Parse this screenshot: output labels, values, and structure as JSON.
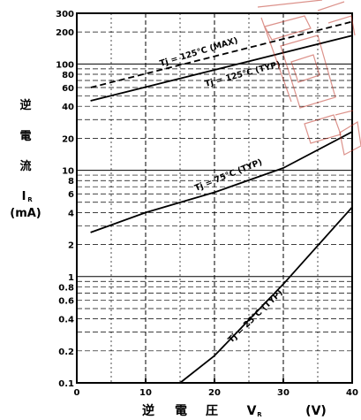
{
  "chart_data": {
    "type": "line",
    "x_scale": "linear",
    "y_scale": "log",
    "xlim": [
      0,
      40
    ],
    "ylim": [
      0.1,
      300
    ],
    "x_ticks": [
      "0",
      "10",
      "20",
      "30",
      "40"
    ],
    "y_ticks": [
      "300",
      "200",
      "100",
      "80",
      "60",
      "40",
      "20",
      "10",
      "8",
      "6",
      "4",
      "2",
      "1",
      "0.8",
      "0.6",
      "0.4",
      "0.2",
      "0.1"
    ],
    "y_axis_label": [
      "逆",
      "電",
      "流",
      "I",
      "R",
      "(mA)"
    ],
    "x_axis_label": [
      "逆",
      "電",
      "圧",
      "V",
      "R",
      "(V)"
    ],
    "grid": true,
    "series": [
      {
        "name": "Tj = 125°C (MAX)",
        "style": "dashed",
        "x": [
          2,
          40
        ],
        "y": [
          60,
          250
        ]
      },
      {
        "name": "Tj = 125°C (TYP)",
        "style": "solid",
        "x": [
          2,
          40
        ],
        "y": [
          45,
          185
        ]
      },
      {
        "name": "Tj = 75°C (TYP)",
        "style": "solid",
        "x": [
          2,
          10,
          20,
          30,
          40
        ],
        "y": [
          2.6,
          4.0,
          6.2,
          10.5,
          23
        ]
      },
      {
        "name": "Tj = 25°C (TYP)",
        "style": "solid",
        "x": [
          15,
          20,
          30,
          40
        ],
        "y": [
          0.1,
          0.18,
          0.85,
          4.5
        ]
      }
    ]
  }
}
